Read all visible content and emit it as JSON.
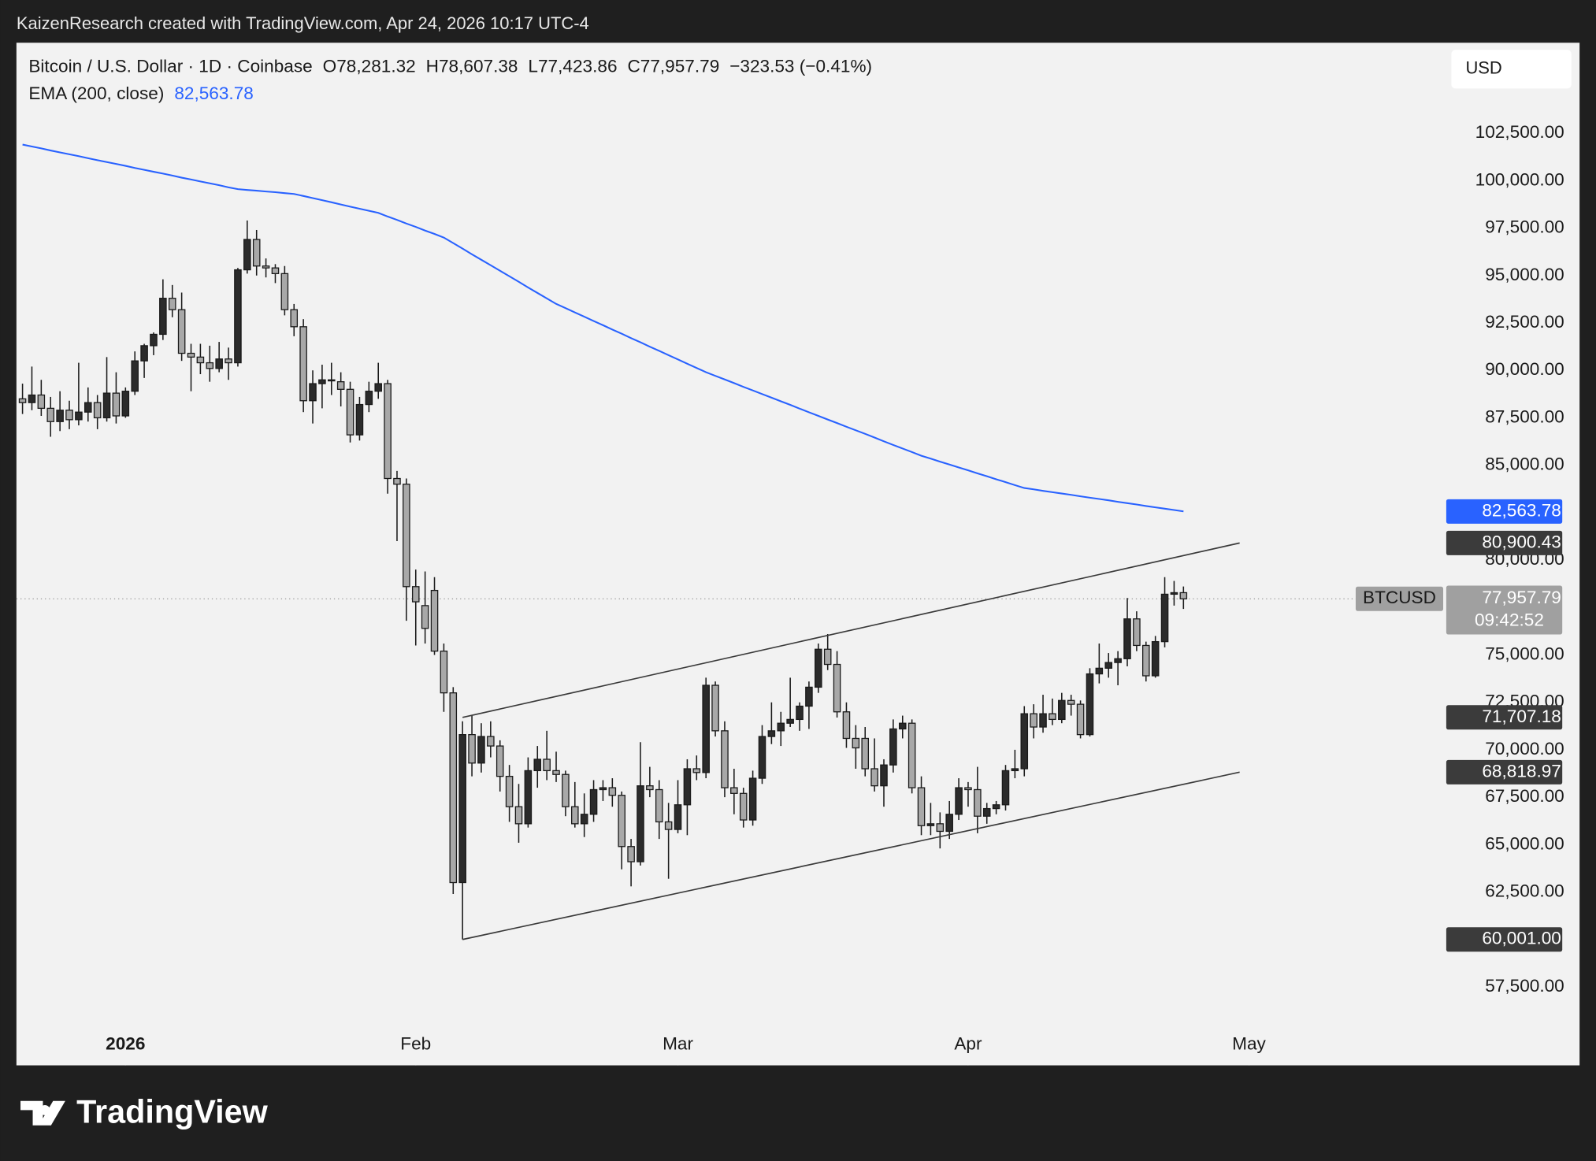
{
  "header": {
    "attribution": "KaizenResearch created with TradingView.com, Apr 24, 2026 10:17 UTC-4"
  },
  "chart_data": {
    "type": "candlestick",
    "legend": {
      "title": "Bitcoin / U.S. Dollar · 1D · Coinbase",
      "open": "O78,281.32",
      "high": "H78,607.38",
      "low": "L77,423.86",
      "close": "C77,957.79",
      "change": "−323.53 (−0.41%)"
    },
    "currency": "USD",
    "up_color": "#2b2b2b",
    "down_color": "#a8a8a8",
    "ohlc": [
      [
        88500,
        89300,
        87700,
        88300
      ],
      [
        88300,
        90200,
        87900,
        88700
      ],
      [
        88700,
        89500,
        87600,
        88000
      ],
      [
        88000,
        88600,
        86500,
        87300
      ],
      [
        87300,
        88900,
        86800,
        87900
      ],
      [
        87900,
        88400,
        86900,
        87400
      ],
      [
        87400,
        90400,
        87100,
        87800
      ],
      [
        87800,
        89100,
        87300,
        88300
      ],
      [
        88300,
        88700,
        86900,
        87500
      ],
      [
        87500,
        90700,
        87300,
        88800
      ],
      [
        88800,
        89900,
        87200,
        87600
      ],
      [
        87600,
        89100,
        87500,
        88900
      ],
      [
        88900,
        91000,
        88700,
        90500
      ],
      [
        90500,
        91400,
        89600,
        91300
      ],
      [
        91300,
        92000,
        90800,
        91900
      ],
      [
        91900,
        94800,
        91600,
        93800
      ],
      [
        93800,
        94500,
        92800,
        93200
      ],
      [
        93200,
        94100,
        90500,
        90900
      ],
      [
        90900,
        91400,
        88900,
        90700
      ],
      [
        90700,
        91400,
        89800,
        90400
      ],
      [
        90400,
        91300,
        89400,
        90100
      ],
      [
        90100,
        91500,
        89900,
        90600
      ],
      [
        90600,
        91200,
        89500,
        90400
      ],
      [
        90400,
        95400,
        90200,
        95300
      ],
      [
        95300,
        97900,
        95100,
        96900
      ],
      [
        96900,
        97400,
        95000,
        95500
      ],
      [
        95500,
        95900,
        94900,
        95400
      ],
      [
        95400,
        95600,
        94600,
        95100
      ],
      [
        95100,
        95500,
        92900,
        93200
      ],
      [
        93200,
        93500,
        91800,
        92300
      ],
      [
        92300,
        92700,
        87800,
        88400
      ],
      [
        88400,
        90000,
        87200,
        89300
      ],
      [
        89300,
        90300,
        88000,
        89500
      ],
      [
        89500,
        90400,
        88700,
        89500
      ],
      [
        89400,
        89900,
        88100,
        89000
      ],
      [
        89000,
        89400,
        86200,
        86600
      ],
      [
        86600,
        88600,
        86300,
        88200
      ],
      [
        88200,
        89400,
        87800,
        88900
      ],
      [
        88900,
        90400,
        88500,
        89300
      ],
      [
        89300,
        89500,
        83500,
        84300
      ],
      [
        84300,
        84700,
        81000,
        84000
      ],
      [
        84000,
        84300,
        76800,
        78600
      ],
      [
        78600,
        79500,
        75500,
        77800
      ],
      [
        77600,
        79400,
        75600,
        76400
      ],
      [
        78400,
        79100,
        75000,
        75200
      ],
      [
        75200,
        75600,
        72000,
        73000
      ],
      [
        73000,
        73300,
        62400,
        63000
      ],
      [
        63000,
        71500,
        60001,
        70800
      ],
      [
        70800,
        71800,
        68600,
        69300
      ],
      [
        69300,
        71400,
        68800,
        70700
      ],
      [
        70700,
        71500,
        69600,
        70200
      ],
      [
        70200,
        70500,
        67800,
        68600
      ],
      [
        68600,
        69200,
        66200,
        67000
      ],
      [
        67000,
        68200,
        65100,
        66100
      ],
      [
        66100,
        69600,
        65900,
        68900
      ],
      [
        68900,
        70200,
        68000,
        69500
      ],
      [
        69500,
        71000,
        68400,
        68900
      ],
      [
        68900,
        69900,
        68300,
        68700
      ],
      [
        68700,
        68900,
        66500,
        67000
      ],
      [
        67000,
        68300,
        65900,
        66100
      ],
      [
        66100,
        67700,
        65400,
        66600
      ],
      [
        66600,
        68400,
        66200,
        67900
      ],
      [
        67900,
        68400,
        67300,
        68000
      ],
      [
        68000,
        68500,
        67000,
        67600
      ],
      [
        67600,
        67800,
        63700,
        64900
      ],
      [
        64900,
        65300,
        62800,
        64100
      ],
      [
        64100,
        70400,
        63900,
        68100
      ],
      [
        68100,
        69100,
        67500,
        67900
      ],
      [
        67900,
        68400,
        65300,
        66200
      ],
      [
        66200,
        67200,
        63200,
        65800
      ],
      [
        65800,
        68400,
        65600,
        67100
      ],
      [
        67100,
        69500,
        65500,
        69000
      ],
      [
        69000,
        69700,
        68400,
        68800
      ],
      [
        68800,
        73800,
        68500,
        73400
      ],
      [
        73400,
        73600,
        70700,
        71000
      ],
      [
        71000,
        71500,
        67500,
        68000
      ],
      [
        68000,
        69000,
        66600,
        67700
      ],
      [
        67700,
        68000,
        65900,
        66300
      ],
      [
        66300,
        68900,
        66000,
        68500
      ],
      [
        68500,
        71300,
        68200,
        70700
      ],
      [
        70700,
        72500,
        70300,
        71000
      ],
      [
        71000,
        72000,
        70200,
        71400
      ],
      [
        71400,
        73800,
        71200,
        71600
      ],
      [
        71600,
        72500,
        71000,
        72300
      ],
      [
        72300,
        73600,
        71100,
        73300
      ],
      [
        73300,
        75600,
        73000,
        75300
      ],
      [
        75300,
        76100,
        74200,
        74500
      ],
      [
        74500,
        75200,
        71700,
        72000
      ],
      [
        72000,
        72500,
        70100,
        70600
      ],
      [
        70600,
        71300,
        69000,
        70100
      ],
      [
        70600,
        71200,
        68600,
        69000
      ],
      [
        69000,
        70600,
        67800,
        68100
      ],
      [
        68100,
        69500,
        67000,
        69200
      ],
      [
        69200,
        71600,
        68800,
        71100
      ],
      [
        71100,
        71800,
        70600,
        71400
      ],
      [
        71400,
        71600,
        67700,
        68000
      ],
      [
        68000,
        68600,
        65500,
        66000
      ],
      [
        66000,
        67200,
        65500,
        66100
      ],
      [
        66100,
        66700,
        64800,
        65700
      ],
      [
        65700,
        67300,
        65300,
        66600
      ],
      [
        66600,
        68500,
        66300,
        68000
      ],
      [
        68000,
        68300,
        67000,
        67900
      ],
      [
        67900,
        69100,
        65600,
        66500
      ],
      [
        66500,
        67200,
        66100,
        66900
      ],
      [
        66900,
        67300,
        66600,
        67100
      ],
      [
        67100,
        69200,
        66800,
        68900
      ],
      [
        68900,
        70000,
        68500,
        69000
      ],
      [
        69000,
        72300,
        68600,
        71900
      ],
      [
        71900,
        72400,
        70600,
        71200
      ],
      [
        71200,
        72900,
        70900,
        71900
      ],
      [
        71900,
        72700,
        71300,
        71600
      ],
      [
        71600,
        73000,
        71400,
        72600
      ],
      [
        72600,
        72900,
        71800,
        72400
      ],
      [
        72400,
        72600,
        70600,
        70800
      ],
      [
        70800,
        74300,
        70700,
        74000
      ],
      [
        74000,
        75600,
        73500,
        74300
      ],
      [
        74300,
        75100,
        73800,
        74600
      ],
      [
        74600,
        75200,
        73400,
        74800
      ],
      [
        74800,
        78000,
        74400,
        76900
      ],
      [
        76900,
        77300,
        75200,
        75500
      ],
      [
        75500,
        75700,
        73600,
        73900
      ],
      [
        73900,
        76000,
        73800,
        75700
      ],
      [
        75700,
        79100,
        75400,
        78200
      ],
      [
        78200,
        78900,
        77600,
        78281.32
      ],
      [
        78281.32,
        78607.38,
        77423.86,
        77957.79
      ]
    ],
    "ema": {
      "name": "EMA (200, close)",
      "value_label": "82,563.78",
      "color": "#2962ff",
      "values": [
        101900,
        101800,
        101700,
        101590,
        101490,
        101390,
        101290,
        101180,
        101080,
        100980,
        100880,
        100780,
        100670,
        100570,
        100470,
        100370,
        100270,
        100160,
        100060,
        99960,
        99860,
        99760,
        99650,
        99550,
        99510,
        99470,
        99430,
        99390,
        99340,
        99300,
        99190,
        99080,
        98970,
        98860,
        98740,
        98630,
        98520,
        98410,
        98300,
        98110,
        97930,
        97740,
        97560,
        97370,
        97190,
        97000,
        96710,
        96420,
        96120,
        95830,
        95540,
        95250,
        94960,
        94670,
        94370,
        94080,
        93790,
        93500,
        93280,
        93050,
        92830,
        92600,
        92380,
        92150,
        91930,
        91700,
        91480,
        91250,
        91030,
        90800,
        90580,
        90350,
        90130,
        89900,
        89710,
        89520,
        89330,
        89130,
        88940,
        88750,
        88560,
        88370,
        88180,
        87980,
        87790,
        87600,
        87410,
        87220,
        87030,
        86840,
        86650,
        86460,
        86260,
        86070,
        85880,
        85690,
        85500,
        85350,
        85190,
        85040,
        84880,
        84730,
        84570,
        84420,
        84260,
        84110,
        83950,
        83800,
        83730,
        83650,
        83580,
        83510,
        83440,
        83360,
        83290,
        83220,
        83150,
        83070,
        83000,
        82930,
        82850,
        82780,
        82710,
        82640,
        82563.78
      ]
    },
    "trendlines": [
      {
        "x": [
          47,
          130
        ],
        "y": [
          71707.18,
          80900.43
        ],
        "labels": [
          "71,707.18",
          "80,900.43"
        ]
      },
      {
        "x": [
          47,
          130
        ],
        "y": [
          60001,
          68818.97
        ],
        "labels": [
          "60,001.00",
          "68,818.97"
        ]
      }
    ],
    "last_price": {
      "symbol": "BTCUSD",
      "label": "77,957.79",
      "countdown": "09:42:52"
    },
    "xlim": [
      -0.65,
      151.96
    ],
    "xticks": [
      {
        "value": 11,
        "label": "2026"
      },
      {
        "value": 42,
        "label": "Feb"
      },
      {
        "value": 70,
        "label": "Mar"
      },
      {
        "value": 101,
        "label": "Apr"
      },
      {
        "value": 131,
        "label": "May"
      }
    ],
    "ylim": [
      55350,
      107270
    ],
    "yticks": [
      {
        "value": 57500,
        "label": "57,500.00"
      },
      {
        "value": 62500,
        "label": "62,500.00"
      },
      {
        "value": 65000,
        "label": "65,000.00"
      },
      {
        "value": 67500,
        "label": "67,500.00"
      },
      {
        "value": 70000,
        "label": "70,000.00"
      },
      {
        "value": 72500,
        "label": "72,500.00"
      },
      {
        "value": 75000,
        "label": "75,000.00"
      },
      {
        "value": 80000,
        "label": "80,000.00"
      },
      {
        "value": 85000,
        "label": "85,000.00"
      },
      {
        "value": 87500,
        "label": "87,500.00"
      },
      {
        "value": 90000,
        "label": "90,000.00"
      },
      {
        "value": 92500,
        "label": "92,500.00"
      },
      {
        "value": 95000,
        "label": "95,000.00"
      },
      {
        "value": 97500,
        "label": "97,500.00"
      },
      {
        "value": 100000,
        "label": "100,000.00"
      },
      {
        "value": 102500,
        "label": "102,500.00"
      }
    ]
  },
  "footer": {
    "logo": "TradingView"
  }
}
